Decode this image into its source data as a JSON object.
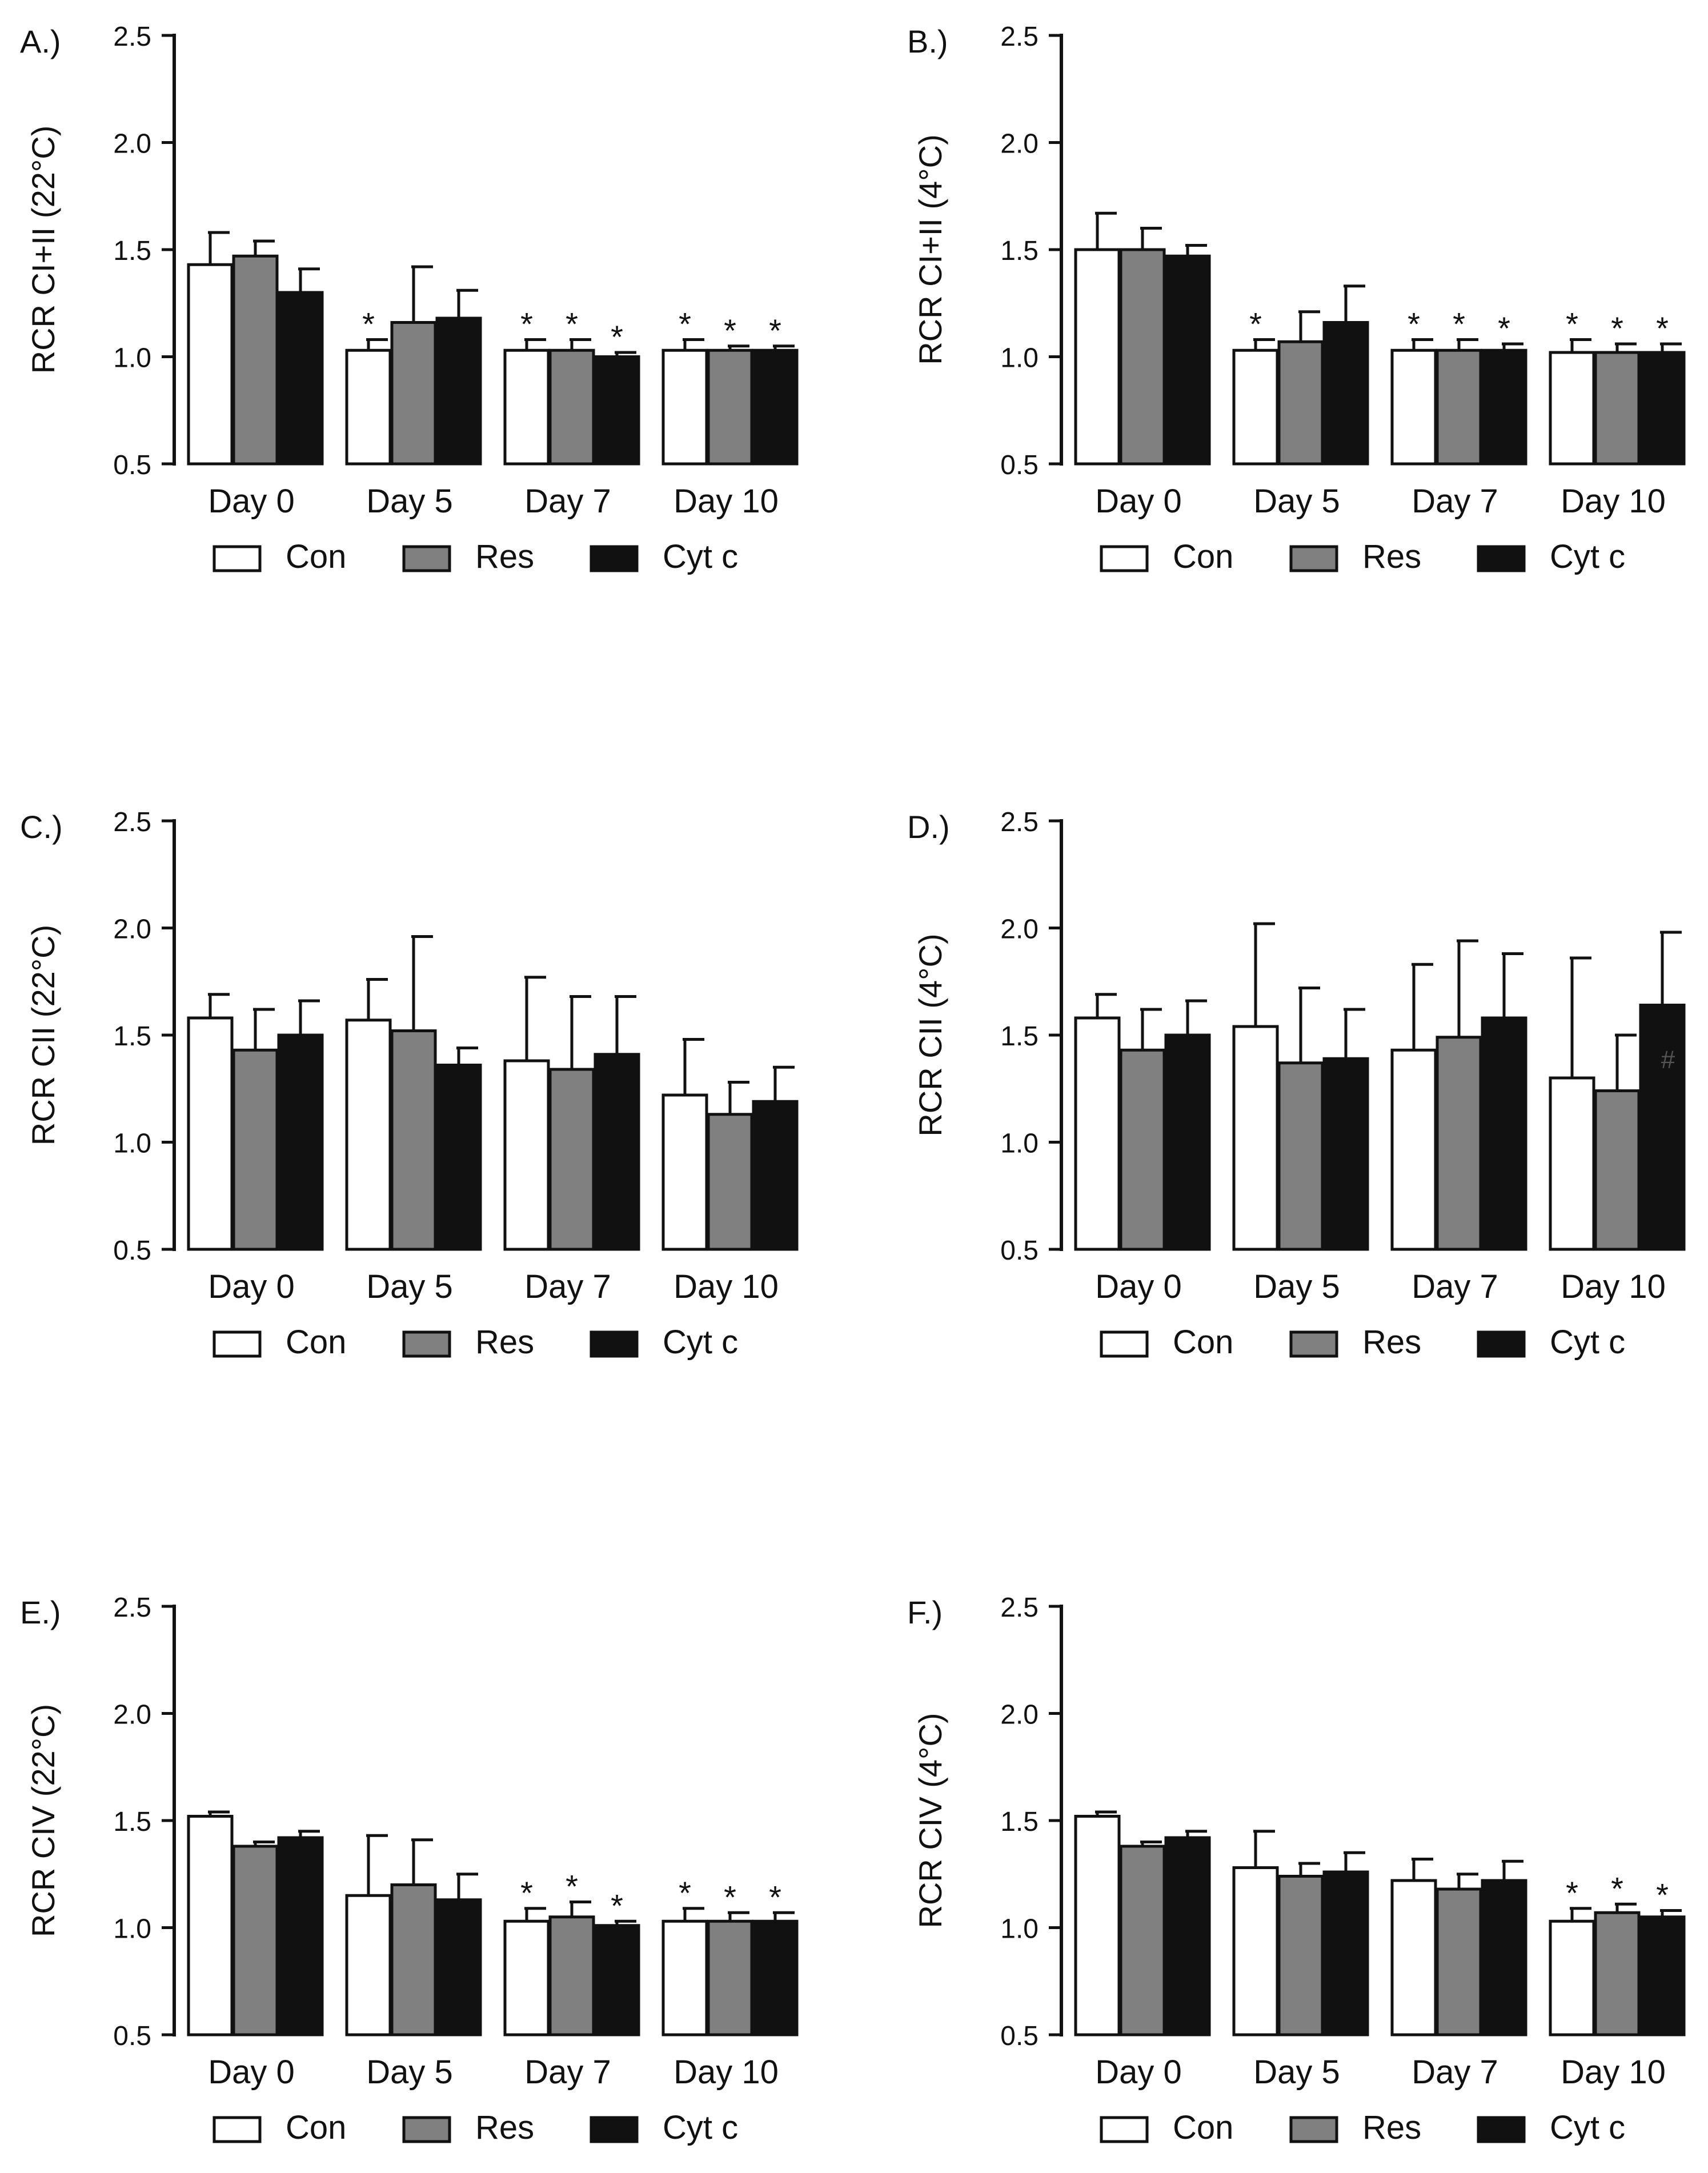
{
  "figure": {
    "legend": [
      {
        "label": "Con",
        "color": "#ffffff"
      },
      {
        "label": "Res",
        "color": "#808080"
      },
      {
        "label": "Cyt c",
        "color": "#111111"
      }
    ]
  },
  "chart_data": [
    {
      "type": "bar",
      "panel_label": "A.)",
      "ylabel": "RCR CI+II (22°C)",
      "categories": [
        "Day 0",
        "Day 5",
        "Day 7",
        "Day 10"
      ],
      "ylim": [
        0.5,
        2.5
      ],
      "yticks": [
        "0.5",
        "1.0",
        "1.5",
        "2.0",
        "2.5"
      ],
      "series": [
        {
          "name": "Con",
          "values": [
            1.43,
            1.03,
            1.03,
            1.03
          ],
          "errors": [
            0.15,
            0.05,
            0.05,
            0.05
          ]
        },
        {
          "name": "Res",
          "values": [
            1.47,
            1.16,
            1.03,
            1.03
          ],
          "errors": [
            0.07,
            0.26,
            0.05,
            0.02
          ]
        },
        {
          "name": "Cyt c",
          "values": [
            1.3,
            1.18,
            1.0,
            1.03
          ],
          "errors": [
            0.11,
            0.13,
            0.02,
            0.02
          ]
        }
      ],
      "marks": [
        [
          "",
          "",
          ""
        ],
        [
          "*",
          "",
          ""
        ],
        [
          "*",
          "*",
          "*"
        ],
        [
          "*",
          "*",
          "*"
        ]
      ]
    },
    {
      "type": "bar",
      "panel_label": "B.)",
      "ylabel": "RCR CI+II (4°C)",
      "categories": [
        "Day 0",
        "Day 5",
        "Day 7",
        "Day 10"
      ],
      "ylim": [
        0.5,
        2.5
      ],
      "yticks": [
        "0.5",
        "1.0",
        "1.5",
        "2.0",
        "2.5"
      ],
      "series": [
        {
          "name": "Con",
          "values": [
            1.5,
            1.03,
            1.03,
            1.02
          ],
          "errors": [
            0.17,
            0.05,
            0.05,
            0.06
          ]
        },
        {
          "name": "Res",
          "values": [
            1.5,
            1.07,
            1.03,
            1.02
          ],
          "errors": [
            0.1,
            0.14,
            0.05,
            0.04
          ]
        },
        {
          "name": "Cyt c",
          "values": [
            1.47,
            1.16,
            1.03,
            1.02
          ],
          "errors": [
            0.05,
            0.17,
            0.03,
            0.04
          ]
        }
      ],
      "marks": [
        [
          "",
          "",
          ""
        ],
        [
          "*",
          "",
          ""
        ],
        [
          "*",
          "*",
          "*"
        ],
        [
          "*",
          "*",
          "*"
        ]
      ]
    },
    {
      "type": "bar",
      "panel_label": "C.)",
      "ylabel": "RCR CII (22°C)",
      "categories": [
        "Day 0",
        "Day 5",
        "Day 7",
        "Day 10"
      ],
      "ylim": [
        0.5,
        2.5
      ],
      "yticks": [
        "0.5",
        "1.0",
        "1.5",
        "2.0",
        "2.5"
      ],
      "series": [
        {
          "name": "Con",
          "values": [
            1.58,
            1.57,
            1.38,
            1.22
          ],
          "errors": [
            0.11,
            0.19,
            0.39,
            0.26
          ]
        },
        {
          "name": "Res",
          "values": [
            1.43,
            1.52,
            1.34,
            1.13
          ],
          "errors": [
            0.19,
            0.44,
            0.34,
            0.15
          ]
        },
        {
          "name": "Cyt c",
          "values": [
            1.5,
            1.36,
            1.41,
            1.19
          ],
          "errors": [
            0.16,
            0.08,
            0.27,
            0.16
          ]
        }
      ],
      "marks": [
        [
          "",
          "",
          ""
        ],
        [
          "",
          "",
          ""
        ],
        [
          "",
          "",
          ""
        ],
        [
          "",
          "",
          ""
        ]
      ]
    },
    {
      "type": "bar",
      "panel_label": "D.)",
      "ylabel": "RCR CII (4°C)",
      "categories": [
        "Day 0",
        "Day 5",
        "Day 7",
        "Day 10"
      ],
      "ylim": [
        0.5,
        2.5
      ],
      "yticks": [
        "0.5",
        "1.0",
        "1.5",
        "2.0",
        "2.5"
      ],
      "series": [
        {
          "name": "Con",
          "values": [
            1.58,
            1.54,
            1.43,
            1.3
          ],
          "errors": [
            0.11,
            0.48,
            0.4,
            0.56
          ]
        },
        {
          "name": "Res",
          "values": [
            1.43,
            1.37,
            1.49,
            1.24
          ],
          "errors": [
            0.19,
            0.35,
            0.45,
            0.26
          ]
        },
        {
          "name": "Cyt c",
          "values": [
            1.5,
            1.39,
            1.58,
            1.64
          ],
          "errors": [
            0.16,
            0.23,
            0.3,
            0.34
          ]
        }
      ],
      "marks": [
        [
          "",
          "",
          ""
        ],
        [
          "",
          "",
          ""
        ],
        [
          "",
          "",
          ""
        ],
        [
          "",
          "",
          "#"
        ]
      ]
    },
    {
      "type": "bar",
      "panel_label": "E.)",
      "ylabel": "RCR CIV (22°C)",
      "categories": [
        "Day 0",
        "Day 5",
        "Day 7",
        "Day 10"
      ],
      "ylim": [
        0.5,
        2.5
      ],
      "yticks": [
        "0.5",
        "1.0",
        "1.5",
        "2.0",
        "2.5"
      ],
      "series": [
        {
          "name": "Con",
          "values": [
            1.52,
            1.15,
            1.03,
            1.03
          ],
          "errors": [
            0.02,
            0.28,
            0.06,
            0.06
          ]
        },
        {
          "name": "Res",
          "values": [
            1.38,
            1.2,
            1.05,
            1.03
          ],
          "errors": [
            0.02,
            0.21,
            0.07,
            0.04
          ]
        },
        {
          "name": "Cyt c",
          "values": [
            1.42,
            1.13,
            1.01,
            1.03
          ],
          "errors": [
            0.03,
            0.12,
            0.02,
            0.04
          ]
        }
      ],
      "marks": [
        [
          "",
          "",
          ""
        ],
        [
          "",
          "",
          ""
        ],
        [
          "*",
          "*",
          "*"
        ],
        [
          "*",
          "*",
          "*"
        ]
      ]
    },
    {
      "type": "bar",
      "panel_label": "F.)",
      "ylabel": "RCR CIV (4°C)",
      "categories": [
        "Day 0",
        "Day 5",
        "Day 7",
        "Day 10"
      ],
      "ylim": [
        0.5,
        2.5
      ],
      "yticks": [
        "0.5",
        "1.0",
        "1.5",
        "2.0",
        "2.5"
      ],
      "series": [
        {
          "name": "Con",
          "values": [
            1.52,
            1.28,
            1.22,
            1.03
          ],
          "errors": [
            0.02,
            0.17,
            0.1,
            0.06
          ]
        },
        {
          "name": "Res",
          "values": [
            1.38,
            1.24,
            1.18,
            1.07
          ],
          "errors": [
            0.02,
            0.06,
            0.07,
            0.04
          ]
        },
        {
          "name": "Cyt c",
          "values": [
            1.42,
            1.26,
            1.22,
            1.05
          ],
          "errors": [
            0.03,
            0.09,
            0.09,
            0.03
          ]
        }
      ],
      "marks": [
        [
          "",
          "",
          ""
        ],
        [
          "",
          "",
          ""
        ],
        [
          "",
          "",
          ""
        ],
        [
          "*",
          "*",
          "*"
        ]
      ]
    }
  ]
}
